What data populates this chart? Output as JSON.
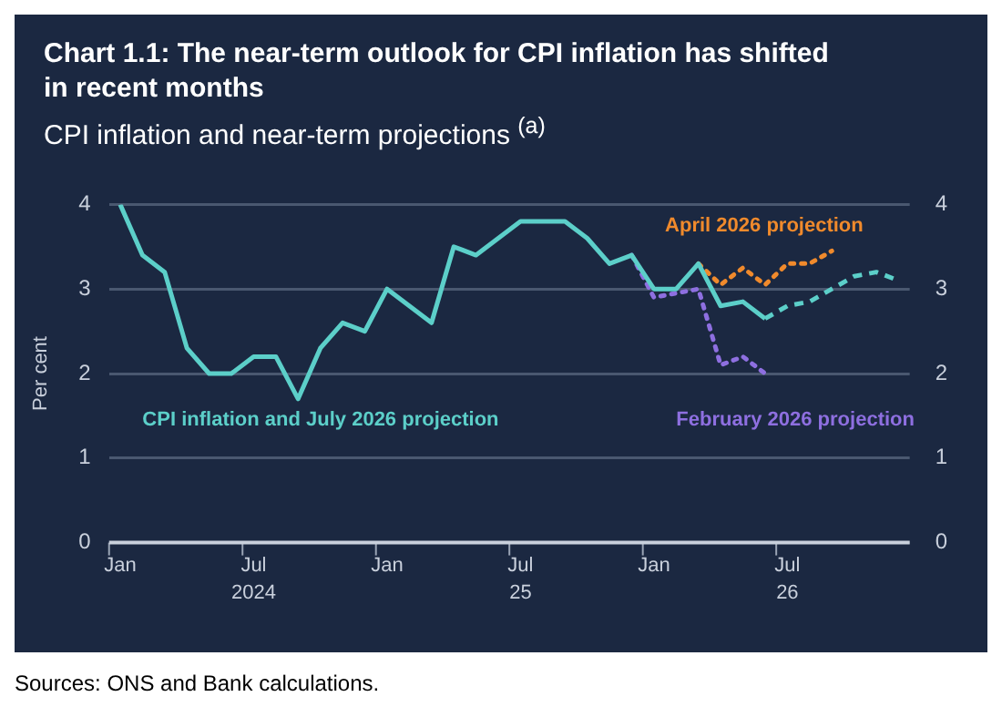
{
  "chart_data": {
    "type": "line",
    "title": "Chart 1.1: The near-term outlook for CPI inflation has shifted in recent months",
    "subtitle": "CPI inflation and near-term projections $^{(a)}$",
    "ylabel": "Per cent",
    "categories": [
      "Jan",
      null,
      null,
      null,
      null,
      null,
      "Jul",
      null,
      null,
      null,
      null,
      null,
      "Jan",
      null,
      null,
      null,
      null,
      null,
      "Jul",
      null,
      null,
      null,
      null,
      null,
      "Jan",
      null,
      null,
      null,
      null,
      null,
      "Jul",
      null,
      null,
      null,
      null,
      null
    ],
    "series": [
      {
        "name": "CPI inflation and July 2026 projection",
        "color": "#5ccfc9",
        "line_style": "solid",
        "values": [
          4.0,
          3.4,
          3.2,
          2.3,
          2.0,
          2.0,
          2.2,
          2.2,
          1.7,
          2.3,
          2.6,
          2.5,
          3.0,
          2.8,
          2.6,
          3.5,
          3.4,
          3.6,
          3.8,
          3.8,
          3.8,
          3.6,
          3.3,
          3.4,
          3.0,
          3.0,
          3.3,
          2.8,
          2.85,
          2.65,
          null,
          null,
          null,
          null,
          null,
          null
        ]
      },
      {
        "color": "#5ccfc9",
        "line_style": "dashed",
        "values": [
          null,
          null,
          null,
          null,
          null,
          null,
          null,
          null,
          null,
          null,
          null,
          null,
          null,
          null,
          null,
          null,
          null,
          null,
          null,
          null,
          null,
          null,
          null,
          null,
          null,
          null,
          null,
          null,
          null,
          2.65,
          2.8,
          2.85,
          3.0,
          3.15,
          3.2,
          3.1
        ]
      },
      {
        "name": "April 2026 projection",
        "color": "#f08a2c",
        "line_style": "dotted",
        "values": [
          null,
          null,
          null,
          null,
          null,
          null,
          null,
          null,
          null,
          null,
          null,
          null,
          null,
          null,
          null,
          null,
          null,
          null,
          null,
          null,
          null,
          null,
          null,
          null,
          null,
          null,
          3.3,
          3.05,
          3.25,
          3.05,
          3.3,
          3.3,
          3.45,
          null,
          null,
          null
        ]
      },
      {
        "name": "February 2026 projection",
        "color": "#8e6fe0",
        "line_style": "dotted",
        "values": [
          null,
          null,
          null,
          null,
          null,
          null,
          null,
          null,
          null,
          null,
          null,
          null,
          null,
          null,
          null,
          null,
          null,
          null,
          null,
          null,
          null,
          null,
          null,
          3.4,
          2.9,
          2.95,
          3.0,
          2.1,
          2.2,
          2.0,
          null,
          null,
          null,
          null,
          null,
          null
        ]
      }
    ],
    "ylim": [
      0,
      4
    ],
    "yticks": [
      0,
      1,
      2,
      3,
      4
    ],
    "y2lim": [
      0,
      4
    ],
    "y2ticks": [
      0,
      1,
      2,
      3,
      4
    ],
    "grid": "y",
    "legend": false,
    "marker": "none",
    "annotations": [
      "2024",
      "25",
      "26",
      "Sources: ONS and Bank calculations."
    ]
  }
}
